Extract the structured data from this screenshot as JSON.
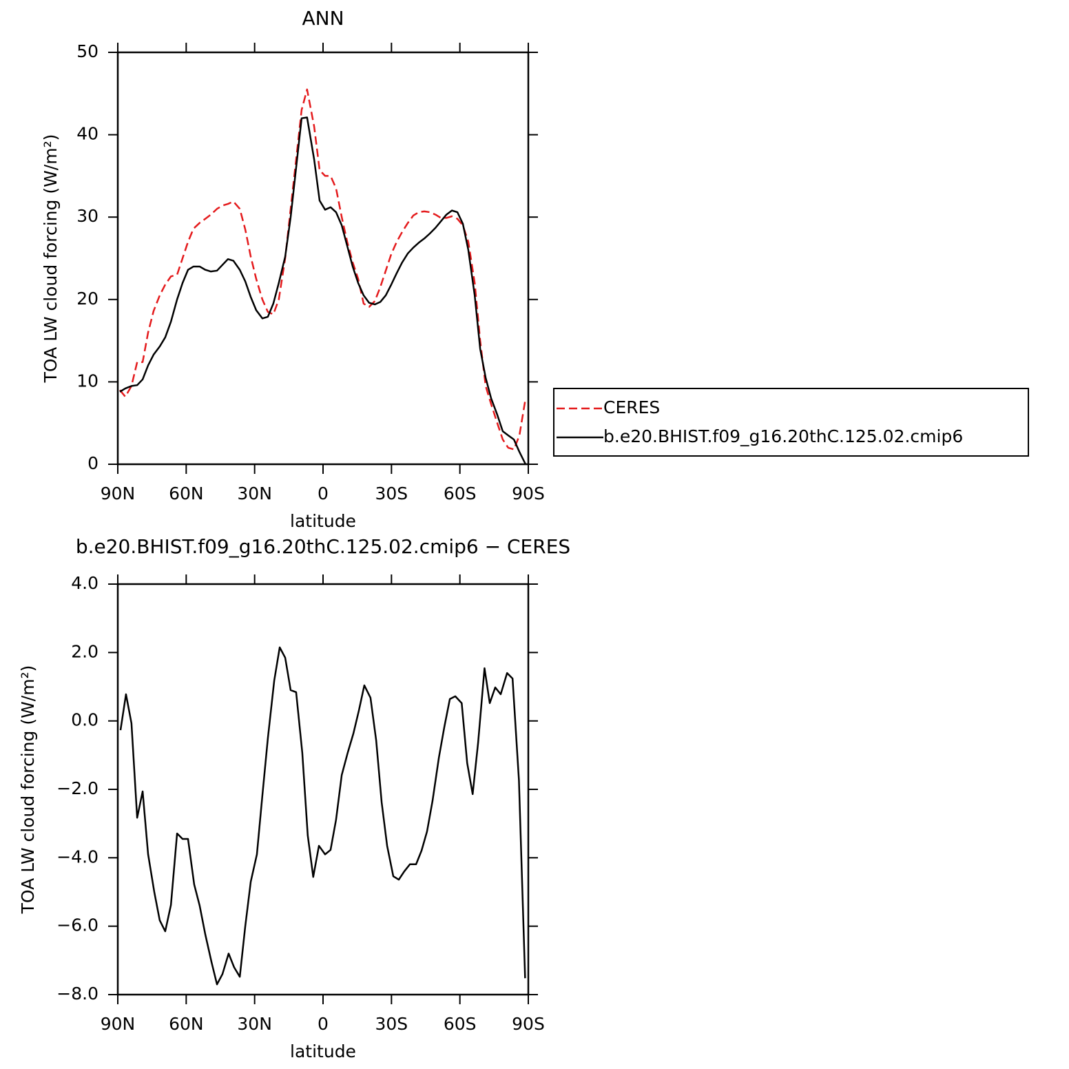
{
  "chart_data": [
    {
      "type": "line",
      "title": "ANN",
      "xlabel": "latitude",
      "ylabel": "TOA LW cloud forcing (W/m²)",
      "xlim": [
        90,
        -90
      ],
      "xticks": [
        {
          "value": 90,
          "label": "90N"
        },
        {
          "value": 60,
          "label": "60N"
        },
        {
          "value": 30,
          "label": "30N"
        },
        0,
        {
          "value": -30,
          "label": "30S"
        },
        {
          "value": -60,
          "label": "60S"
        },
        {
          "value": -90,
          "label": "90S"
        }
      ],
      "ylim": [
        0,
        50
      ],
      "yticks": [
        0,
        10,
        20,
        30,
        40,
        50
      ],
      "legend": "right",
      "x": [
        89.1,
        86.7,
        84,
        81.5,
        79.1,
        76.7,
        74.3,
        71.6,
        69.2,
        66.7,
        64,
        61.6,
        59.2,
        56.8,
        54.1,
        51.6,
        49.2,
        46.5,
        44.1,
        41.7,
        39.3,
        36.5,
        34.1,
        31.7,
        29.3,
        26.6,
        24.2,
        21.8,
        19.4,
        16.6,
        14.2,
        11.8,
        9.4,
        7,
        3.9,
        1.5,
        -0.9,
        -3.3,
        -5.7,
        -8.2,
        -10.6,
        -13,
        -15.4,
        -17.8,
        -20.2,
        -22.7,
        -25.1,
        -27.5,
        -29.9,
        -32.3,
        -34.7,
        -37.2,
        -39.6,
        -42,
        -44.4,
        -46.8,
        -49.3,
        -51.7,
        -54.1,
        -56.5,
        -58.9,
        -61.3,
        -63.7,
        -66.5,
        -68.9,
        -71.3,
        -73.7,
        -76.4,
        -78.8,
        -81.2,
        -83.7,
        -86.1,
        -88.8
      ],
      "series": [
        {
          "name": "CERES",
          "color": "#e41a1c",
          "linestyle": "dashed",
          "values": [
            9,
            8.2,
            9.5,
            12.4,
            12.4,
            16,
            18.6,
            20.5,
            21.8,
            22.8,
            23,
            25,
            27,
            28.6,
            29.3,
            29.8,
            30.3,
            31,
            31.4,
            31.6,
            31.9,
            31,
            28.5,
            25.2,
            22.5,
            20,
            18.5,
            18.2,
            20,
            25,
            31,
            37,
            43,
            45.5,
            41,
            35.7,
            35,
            35,
            33.5,
            30,
            27,
            24.5,
            22.5,
            19.5,
            19.1,
            19.8,
            21.5,
            23.5,
            25.5,
            27,
            28.2,
            29.3,
            30.2,
            30.6,
            30.7,
            30.6,
            30.3,
            29.9,
            29.9,
            30.1,
            29.8,
            29,
            27,
            22,
            15,
            9.5,
            7.3,
            5,
            3,
            2,
            1.8,
            3.5,
            8
          ]
        },
        {
          "name": "b.e20.BHIST.f09_g16.20thC.125.02.cmip6",
          "color": "#000000",
          "linestyle": "solid",
          "values": [
            8.8,
            9.2,
            9.5,
            9.6,
            10.3,
            12,
            13.3,
            14.3,
            15.4,
            17.3,
            20,
            22,
            23.6,
            24,
            24,
            23.6,
            23.4,
            23.5,
            24.2,
            24.9,
            24.7,
            23.6,
            22.2,
            20.3,
            18.7,
            17.7,
            17.9,
            19.5,
            22,
            25.2,
            30,
            36,
            42,
            42.1,
            37,
            32,
            30.9,
            31.2,
            30.6,
            29,
            26.5,
            24,
            22,
            20.5,
            19.6,
            19.4,
            19.7,
            20.5,
            21.8,
            23.2,
            24.5,
            25.6,
            26.3,
            26.9,
            27.4,
            28,
            28.7,
            29.5,
            30.3,
            30.8,
            30.6,
            29.2,
            26,
            20.5,
            14,
            10.5,
            8,
            6,
            4,
            3.5,
            3,
            1.5,
            0
          ]
        }
      ]
    },
    {
      "type": "line",
      "title": "b.e20.BHIST.f09_g16.20thC.125.02.cmip6 − CERES",
      "xlabel": "latitude",
      "ylabel": "TOA LW cloud forcing (W/m²)",
      "xlim": [
        90,
        -90
      ],
      "xticks": [
        {
          "value": 90,
          "label": "90N"
        },
        {
          "value": 60,
          "label": "60N"
        },
        {
          "value": 30,
          "label": "30N"
        },
        0,
        {
          "value": -30,
          "label": "30S"
        },
        {
          "value": -60,
          "label": "60S"
        },
        {
          "value": -90,
          "label": "90S"
        }
      ],
      "ylim": [
        -8,
        4
      ],
      "yticks": [
        {
          "value": -8,
          "label": "−8.0"
        },
        {
          "value": -6,
          "label": "−6.0"
        },
        {
          "value": -4,
          "label": "−4.0"
        },
        {
          "value": -2,
          "label": "−2.0"
        },
        {
          "value": 0,
          "label": "0.0"
        },
        {
          "value": 2,
          "label": "2.0"
        },
        {
          "value": 4,
          "label": "4.0"
        }
      ],
      "x": [
        88.8,
        86.4,
        84,
        81.5,
        79.1,
        76.7,
        74,
        71.6,
        69.2,
        66.7,
        64,
        61.6,
        59.2,
        56.5,
        54.1,
        51.6,
        48.9,
        46.5,
        44.1,
        41.4,
        39,
        36.5,
        34.1,
        31.7,
        29,
        26.6,
        24.2,
        21.4,
        19,
        16.6,
        14.2,
        11.8,
        9.1,
        6.7,
        4.3,
        1.8,
        -0.9,
        -3.3,
        -5.7,
        -8.2,
        -10.9,
        -13.3,
        -15.7,
        -18.1,
        -20.8,
        -23.3,
        -25.7,
        -28.1,
        -30.8,
        -33.2,
        -35.6,
        -38.1,
        -40.8,
        -43.2,
        -45.6,
        -48,
        -50.8,
        -53.2,
        -55.6,
        -58,
        -60.8,
        -63.2,
        -65.6,
        -68,
        -70.8,
        -73.1,
        -75.5,
        -77.9,
        -80.7,
        -83.1,
        -85.9,
        -88.6
      ],
      "series": [
        {
          "color": "#000000",
          "linestyle": "solid",
          "values": [
            -0.27,
            0.78,
            -0.07,
            -2.83,
            -2.06,
            -3.9,
            -5,
            -5.83,
            -6.15,
            -5.38,
            -3.29,
            -3.45,
            -3.45,
            -4.78,
            -5.4,
            -6.25,
            -7.05,
            -7.7,
            -7.4,
            -6.8,
            -7.2,
            -7.48,
            -6,
            -4.7,
            -3.9,
            -2.18,
            -0.51,
            1.18,
            2.15,
            1.85,
            0.9,
            0.84,
            -0.93,
            -3.35,
            -4.56,
            -3.65,
            -3.9,
            -3.77,
            -2.89,
            -1.58,
            -0.91,
            -0.37,
            0.3,
            1.04,
            0.68,
            -0.57,
            -2.38,
            -3.65,
            -4.54,
            -4.64,
            -4.4,
            -4.19,
            -4.19,
            -3.79,
            -3.23,
            -2.34,
            -1.07,
            -0.17,
            0.64,
            0.72,
            0.52,
            -1.23,
            -2.14,
            -0.63,
            1.54,
            0.52,
            0.98,
            0.78,
            1.4,
            1.24,
            -1.74,
            -7.52
          ]
        }
      ]
    }
  ]
}
